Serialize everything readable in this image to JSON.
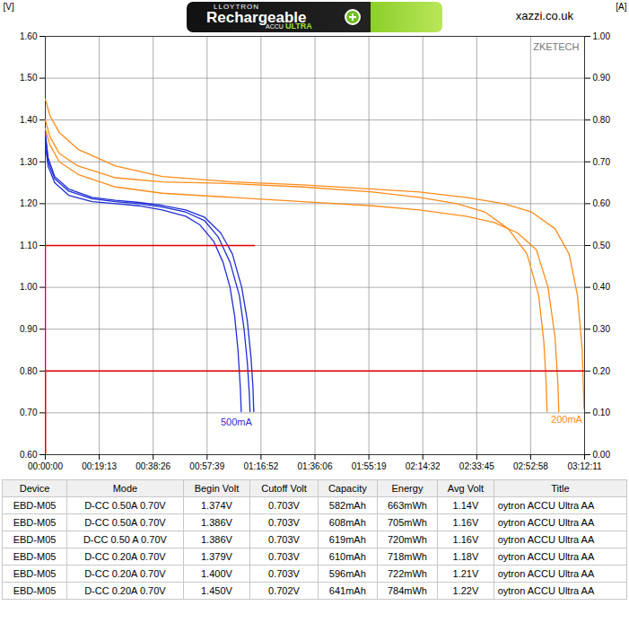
{
  "header": {
    "battery_label": [
      "LLOYTRON",
      "Rechargeable",
      "ACCU",
      "ULTRA"
    ],
    "source": "xazzi.co.uk"
  },
  "chart_data": {
    "type": "line",
    "ylabel": "[V]",
    "y2label": "[A]",
    "annotations": [
      {
        "text": "ZKETECH"
      }
    ],
    "grid": true,
    "xlim": [
      0,
      11531
    ],
    "xticks": [
      {
        "value": 0,
        "label": "00:00:00"
      },
      {
        "value": 1153,
        "label": "00:19:13"
      },
      {
        "value": 2306,
        "label": "00:38:26"
      },
      {
        "value": 3459,
        "label": "00:57:39"
      },
      {
        "value": 4612,
        "label": "01:16:52"
      },
      {
        "value": 5766,
        "label": "01:36:06"
      },
      {
        "value": 6919,
        "label": "01:55:19"
      },
      {
        "value": 8072,
        "label": "02:14:32"
      },
      {
        "value": 9225,
        "label": "02:33:45"
      },
      {
        "value": 10378,
        "label": "02:52:58"
      },
      {
        "value": 11531,
        "label": "03:12:11"
      }
    ],
    "ylim": [
      0.6,
      1.6
    ],
    "yticks": [
      {
        "value": 0.6,
        "label": "0.60"
      },
      {
        "value": 0.7,
        "label": "0.70"
      },
      {
        "value": 0.8,
        "label": "0.80"
      },
      {
        "value": 0.9,
        "label": "0.90"
      },
      {
        "value": 1.0,
        "label": "1.00"
      },
      {
        "value": 1.1,
        "label": "1.10"
      },
      {
        "value": 1.2,
        "label": "1.20"
      },
      {
        "value": 1.3,
        "label": "1.30"
      },
      {
        "value": 1.4,
        "label": "1.40"
      },
      {
        "value": 1.5,
        "label": "1.50"
      },
      {
        "value": 1.6,
        "label": "1.60"
      }
    ],
    "y2lim": [
      0,
      1.0
    ],
    "y2ticks": [
      {
        "value": 0,
        "label": "0.00"
      },
      {
        "value": 0.1,
        "label": "0.10"
      },
      {
        "value": 0.2,
        "label": "0.20"
      },
      {
        "value": 0.3,
        "label": "0.30"
      },
      {
        "value": 0.4,
        "label": "0.40"
      },
      {
        "value": 0.5,
        "label": "0.50"
      },
      {
        "value": 0.6,
        "label": "0.60"
      },
      {
        "value": 0.7,
        "label": "0.70"
      },
      {
        "value": 0.8,
        "label": "0.80"
      },
      {
        "value": 0.9,
        "label": "0.90"
      },
      {
        "value": 1.0,
        "label": "1.00"
      }
    ],
    "series": [
      {
        "name": "500mA",
        "color": "#1f2fd6",
        "x": [
          0,
          60,
          200,
          500,
          1000,
          1500,
          2000,
          2500,
          3000,
          3300,
          3600,
          3800,
          3950,
          4050,
          4120,
          4170,
          4190
        ],
        "values": [
          1.34,
          1.29,
          1.25,
          1.22,
          1.205,
          1.2,
          1.195,
          1.185,
          1.17,
          1.15,
          1.11,
          1.06,
          1.0,
          0.93,
          0.85,
          0.76,
          0.703
        ]
      },
      {
        "name": "500mA",
        "color": "#1f2fd6",
        "x": [
          0,
          60,
          200,
          500,
          1000,
          1500,
          2000,
          2500,
          3000,
          3400,
          3700,
          3950,
          4150,
          4250,
          4320,
          4360,
          4378
        ],
        "values": [
          1.36,
          1.3,
          1.26,
          1.23,
          1.212,
          1.205,
          1.2,
          1.192,
          1.18,
          1.16,
          1.12,
          1.06,
          0.98,
          0.9,
          0.82,
          0.75,
          0.703
        ]
      },
      {
        "name": "500mA",
        "color": "#1f2fd6",
        "x": [
          0,
          60,
          200,
          500,
          1000,
          1500,
          2000,
          2500,
          3000,
          3400,
          3750,
          4000,
          4200,
          4320,
          4400,
          4440,
          4457
        ],
        "values": [
          1.37,
          1.31,
          1.265,
          1.235,
          1.215,
          1.208,
          1.203,
          1.196,
          1.185,
          1.168,
          1.13,
          1.08,
          1.0,
          0.92,
          0.83,
          0.76,
          0.703
        ]
      },
      {
        "name": "200mA",
        "color": "#ff8c1a",
        "x": [
          0,
          100,
          300,
          700,
          1500,
          2500,
          4000,
          5500,
          7000,
          8000,
          9000,
          9600,
          10100,
          10500,
          10750,
          10900,
          10960,
          10980
        ],
        "values": [
          1.379,
          1.34,
          1.3,
          1.27,
          1.24,
          1.225,
          1.215,
          1.205,
          1.195,
          1.185,
          1.17,
          1.155,
          1.13,
          1.09,
          1.0,
          0.88,
          0.77,
          0.703
        ]
      },
      {
        "name": "200mA",
        "color": "#ff8c1a",
        "x": [
          0,
          100,
          300,
          700,
          1500,
          2500,
          4000,
          5500,
          7000,
          8000,
          8800,
          9400,
          9900,
          10300,
          10550,
          10660,
          10710,
          10728
        ],
        "values": [
          1.4,
          1.36,
          1.32,
          1.29,
          1.262,
          1.252,
          1.248,
          1.24,
          1.228,
          1.215,
          1.2,
          1.18,
          1.14,
          1.08,
          0.98,
          0.87,
          0.77,
          0.703
        ]
      },
      {
        "name": "200mA",
        "color": "#ff8c1a",
        "x": [
          0,
          100,
          300,
          700,
          1500,
          2500,
          4000,
          5500,
          7000,
          8000,
          9000,
          9800,
          10400,
          10900,
          11200,
          11380,
          11480,
          11520
        ],
        "values": [
          1.45,
          1.41,
          1.37,
          1.33,
          1.29,
          1.265,
          1.252,
          1.245,
          1.235,
          1.228,
          1.215,
          1.2,
          1.18,
          1.14,
          1.08,
          0.98,
          0.85,
          0.71
        ]
      },
      {
        "axis": "y2",
        "color": "#e00000",
        "x": [
          0,
          0,
          4475
        ],
        "values": [
          0,
          0.5,
          0.5
        ]
      },
      {
        "axis": "y2",
        "color": "#e00000",
        "x": [
          0,
          0,
          11531
        ],
        "values": [
          0,
          0.2,
          0.2
        ]
      }
    ]
  },
  "table": {
    "columns": [
      "Device",
      "Mode",
      "Begin Volt",
      "Cutoff Volt",
      "Capacity",
      "Energy",
      "Avg Volt",
      "Title"
    ],
    "rows": [
      [
        "EBD-M05",
        "D-CC 0.50A 0.70V",
        "1.374V",
        "0.703V",
        "582mAh",
        "663mWh",
        "1.14V",
        "oytron ACCU Ultra AA"
      ],
      [
        "EBD-M05",
        "D-CC 0.50A 0.70V",
        "1.386V",
        "0.703V",
        "608mAh",
        "705mWh",
        "1.16V",
        "oytron ACCU Ultra AA"
      ],
      [
        "EBD-M05",
        "D-CC 0.50 A 0.70V",
        "1.386V",
        "0.703V",
        "619mAh",
        "720mWh",
        "1.16V",
        "oytron ACCU Ultra AA"
      ],
      [
        "EBD-M05",
        "D-CC 0.20A 0.70V",
        "1.379V",
        "0.703V",
        "610mAh",
        "718mWh",
        "1.18V",
        "oytron ACCU Ultra AA"
      ],
      [
        "EBD-M05",
        "D-CC 0.20A 0.70V",
        "1.400V",
        "0.703V",
        "596mAh",
        "722mWh",
        "1.21V",
        "oytron ACCU Ultra AA"
      ],
      [
        "EBD-M05",
        "D-CC 0.20A 0.70V",
        "1.450V",
        "0.702V",
        "641mAh",
        "784mWh",
        "1.22V",
        "oytron ACCU Ultra AA"
      ]
    ]
  }
}
